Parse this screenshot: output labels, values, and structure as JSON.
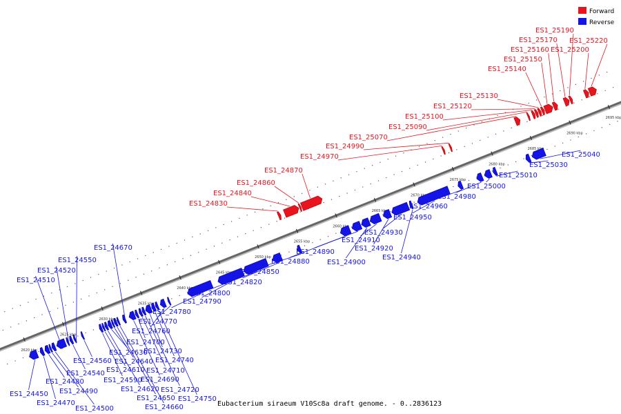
{
  "caption": "Eubacterium siraeum V10Sc8a draft genome. - 0..2836123",
  "colors": {
    "forward": "#e8141e",
    "reverse": "#1414e6",
    "axis": "#666666"
  },
  "legend": [
    {
      "label": "Forward",
      "color": "#e8141e"
    },
    {
      "label": "Reverse",
      "color": "#1414e6"
    }
  ],
  "ticks": [
    "2620 kbp",
    "2625 kbp",
    "2630 kbp",
    "2635 kbp",
    "2640 kbp",
    "2645 kbp",
    "2650 kbp",
    "2655 kbp",
    "2660 kbp",
    "2665 kbp",
    "2670 kbp",
    "2675 kbp",
    "2680 kbp",
    "2685 kbp",
    "2690 kbp",
    "2695 kbp"
  ],
  "forward_genes": [
    {
      "id": "ES1_24830",
      "start": 2653.6,
      "end": 2653.9
    },
    {
      "id": "ES1_24840",
      "start": 2654.4,
      "end": 2656.2
    },
    {
      "id": "ES1_24860",
      "start": 2656.3,
      "end": 2656.5
    },
    {
      "id": "ES1_24870",
      "start": 2656.6,
      "end": 2659.2
    },
    {
      "id": "ES1_24970",
      "start": 2674.7,
      "end": 2674.9
    },
    {
      "id": "ES1_24990",
      "start": 2675.6,
      "end": 2675.8
    },
    {
      "id": "ES1_25070",
      "start": 2684.0,
      "end": 2684.6
    },
    {
      "id": "ES1_25090",
      "start": 2685.6,
      "end": 2685.8
    },
    {
      "id": "ES1_25100",
      "start": 2686.2,
      "end": 2686.5
    },
    {
      "id": "ES1_25120",
      "start": 2686.6,
      "end": 2686.9
    },
    {
      "id": "ES1_25130",
      "start": 2687.0,
      "end": 2687.3
    },
    {
      "id": "ES1_25140",
      "start": 2687.4,
      "end": 2687.7
    },
    {
      "id": "ES1_25150",
      "start": 2687.8,
      "end": 2688.8
    },
    {
      "id": "ES1_25160",
      "start": 2688.9,
      "end": 2689.4
    },
    {
      "id": "ES1_25170",
      "start": 2690.3,
      "end": 2690.9
    },
    {
      "id": "ES1_25190",
      "start": 2691.0,
      "end": 2691.3
    },
    {
      "id": "ES1_25200",
      "start": 2692.9,
      "end": 2693.4
    },
    {
      "id": "ES1_25220",
      "start": 2693.5,
      "end": 2694.4
    }
  ],
  "reverse_genes": [
    {
      "id": "ES1_24450",
      "start": 2619.8,
      "end": 2620.8
    },
    {
      "id": "ES1_24470",
      "start": 2621.2,
      "end": 2621.6
    },
    {
      "id": "ES1_24480",
      "start": 2621.8,
      "end": 2622.3
    },
    {
      "id": "ES1_24490",
      "start": 2622.4,
      "end": 2622.6
    },
    {
      "id": "ES1_24500",
      "start": 2622.7,
      "end": 2623.1
    },
    {
      "id": "ES1_24510",
      "start": 2623.3,
      "end": 2624.4
    },
    {
      "id": "ES1_24520",
      "start": 2624.6,
      "end": 2624.8
    },
    {
      "id": "ES1_24540",
      "start": 2625.0,
      "end": 2625.3
    },
    {
      "id": "ES1_24550",
      "start": 2625.5,
      "end": 2625.7
    },
    {
      "id": "ES1_24560",
      "start": 2626.5,
      "end": 2626.7
    },
    {
      "id": "ES1_24590",
      "start": 2628.8,
      "end": 2629.1
    },
    {
      "id": "ES1_24610",
      "start": 2629.2,
      "end": 2629.4
    },
    {
      "id": "ES1_24620",
      "start": 2629.5,
      "end": 2629.8
    },
    {
      "id": "ES1_24630",
      "start": 2629.9,
      "end": 2630.3
    },
    {
      "id": "ES1_24640",
      "start": 2630.4,
      "end": 2630.6
    },
    {
      "id": "ES1_24650",
      "start": 2630.7,
      "end": 2631.0
    },
    {
      "id": "ES1_24660",
      "start": 2631.1,
      "end": 2631.3
    },
    {
      "id": "ES1_24670",
      "start": 2631.8,
      "end": 2632.1
    },
    {
      "id": "ES1_24690",
      "start": 2632.6,
      "end": 2633.3
    },
    {
      "id": "ES1_24700",
      "start": 2633.4,
      "end": 2633.7
    },
    {
      "id": "ES1_24710",
      "start": 2633.9,
      "end": 2634.2
    },
    {
      "id": "ES1_24720",
      "start": 2634.3,
      "end": 2634.6
    },
    {
      "id": "ES1_24730",
      "start": 2634.7,
      "end": 2635.4
    },
    {
      "id": "ES1_24740",
      "start": 2635.5,
      "end": 2635.9
    },
    {
      "id": "ES1_24750",
      "start": 2636.0,
      "end": 2636.3
    },
    {
      "id": "ES1_24760",
      "start": 2636.6,
      "end": 2637.2
    },
    {
      "id": "ES1_24770",
      "start": 2637.6,
      "end": 2637.8
    },
    {
      "id": "ES1_24780",
      "start": 2640.1,
      "end": 2643.2
    },
    {
      "id": "ES1_24790",
      "start": 2644.0,
      "end": 2647.2
    },
    {
      "id": "ES1_24800",
      "start": 2647.3,
      "end": 2650.3
    },
    {
      "id": "ES1_24820",
      "start": 2651.0,
      "end": 2652.1
    },
    {
      "id": "ES1_24850",
      "start": 2654.2,
      "end": 2654.6
    },
    {
      "id": "ES1_24880",
      "start": 2659.7,
      "end": 2660.9
    },
    {
      "id": "ES1_24890",
      "start": 2661.2,
      "end": 2662.3
    },
    {
      "id": "ES1_24900",
      "start": 2662.4,
      "end": 2663.4
    },
    {
      "id": "ES1_24910",
      "start": 2663.5,
      "end": 2664.8
    },
    {
      "id": "ES1_24920",
      "start": 2665.2,
      "end": 2666.1
    },
    {
      "id": "ES1_24930",
      "start": 2666.3,
      "end": 2668.4
    },
    {
      "id": "ES1_24940",
      "start": 2668.6,
      "end": 2668.9
    },
    {
      "id": "ES1_24950",
      "start": 2669.6,
      "end": 2673.6
    },
    {
      "id": "ES1_24960",
      "start": 2674.8,
      "end": 2675.3
    },
    {
      "id": "ES1_24980",
      "start": 2677.2,
      "end": 2677.9
    },
    {
      "id": "ES1_25000",
      "start": 2678.2,
      "end": 2679.0
    },
    {
      "id": "ES1_25010",
      "start": 2679.3,
      "end": 2679.7
    },
    {
      "id": "ES1_25030",
      "start": 2683.5,
      "end": 2684.0
    },
    {
      "id": "ES1_25040",
      "start": 2684.3,
      "end": 2685.9
    }
  ],
  "forward_labels": [
    {
      "id": "ES1_24830",
      "gene": 0
    },
    {
      "id": "ES1_24840",
      "gene": 1
    },
    {
      "id": "ES1_24860",
      "gene": 2
    },
    {
      "id": "ES1_24870",
      "gene": 3
    },
    {
      "id": "ES1_24970",
      "gene": 4
    },
    {
      "id": "ES1_24990",
      "gene": 5
    },
    {
      "id": "ES1_25070",
      "gene": 6
    },
    {
      "id": "ES1_25090",
      "gene": 7
    },
    {
      "id": "ES1_25100",
      "gene": 8
    },
    {
      "id": "ES1_25120",
      "gene": 9
    },
    {
      "id": "ES1_25130",
      "gene": 10
    },
    {
      "id": "ES1_25140",
      "gene": 11
    },
    {
      "id": "ES1_25150",
      "gene": 12
    },
    {
      "id": "ES1_25160",
      "gene": 13
    },
    {
      "id": "ES1_25170",
      "gene": 14
    },
    {
      "id": "ES1_25190",
      "gene": 15
    },
    {
      "id": "ES1_25200",
      "gene": 16
    },
    {
      "id": "ES1_25220",
      "gene": 17
    }
  ],
  "reverse_labels": [
    {
      "id": "ES1_24510",
      "gene": 5
    },
    {
      "id": "ES1_24520",
      "gene": 6
    },
    {
      "id": "ES1_24550",
      "gene": 8
    },
    {
      "id": "ES1_24670",
      "gene": 17
    },
    {
      "id": "ES1_24450",
      "gene": 0
    },
    {
      "id": "ES1_24470",
      "gene": 1
    },
    {
      "id": "ES1_24480",
      "gene": 2
    },
    {
      "id": "ES1_24490",
      "gene": 3
    },
    {
      "id": "ES1_24500",
      "gene": 4
    },
    {
      "id": "ES1_24540",
      "gene": 7
    },
    {
      "id": "ES1_24560",
      "gene": 9
    },
    {
      "id": "ES1_24590",
      "gene": 10
    },
    {
      "id": "ES1_24610",
      "gene": 11
    },
    {
      "id": "ES1_24620",
      "gene": 12
    },
    {
      "id": "ES1_24630",
      "gene": 13
    },
    {
      "id": "ES1_24640",
      "gene": 14
    },
    {
      "id": "ES1_24650",
      "gene": 15
    },
    {
      "id": "ES1_24660",
      "gene": 16
    },
    {
      "id": "ES1_24690",
      "gene": 18
    },
    {
      "id": "ES1_24700",
      "gene": 19
    },
    {
      "id": "ES1_24710",
      "gene": 20
    },
    {
      "id": "ES1_24720",
      "gene": 21
    },
    {
      "id": "ES1_24730",
      "gene": 22
    },
    {
      "id": "ES1_24740",
      "gene": 23
    },
    {
      "id": "ES1_24750",
      "gene": 24
    },
    {
      "id": "ES1_24760",
      "gene": 25
    },
    {
      "id": "ES1_24770",
      "gene": 26
    },
    {
      "id": "ES1_24780",
      "gene": 27
    },
    {
      "id": "ES1_24790",
      "gene": 28
    },
    {
      "id": "ES1_24800",
      "gene": 29
    },
    {
      "id": "ES1_24820",
      "gene": 30
    },
    {
      "id": "ES1_24850",
      "gene": 31
    },
    {
      "id": "ES1_24880",
      "gene": 32
    },
    {
      "id": "ES1_24890",
      "gene": 33
    },
    {
      "id": "ES1_24900",
      "gene": 34
    },
    {
      "id": "ES1_24910",
      "gene": 35
    },
    {
      "id": "ES1_24920",
      "gene": 36
    },
    {
      "id": "ES1_24930",
      "gene": 37
    },
    {
      "id": "ES1_24940",
      "gene": 38
    },
    {
      "id": "ES1_24950",
      "gene": 39
    },
    {
      "id": "ES1_24960",
      "gene": 40
    },
    {
      "id": "ES1_24980",
      "gene": 41
    },
    {
      "id": "ES1_25000",
      "gene": 42
    },
    {
      "id": "ES1_25010",
      "gene": 43
    },
    {
      "id": "ES1_25030",
      "gene": 44
    },
    {
      "id": "ES1_25040",
      "gene": 45
    }
  ]
}
